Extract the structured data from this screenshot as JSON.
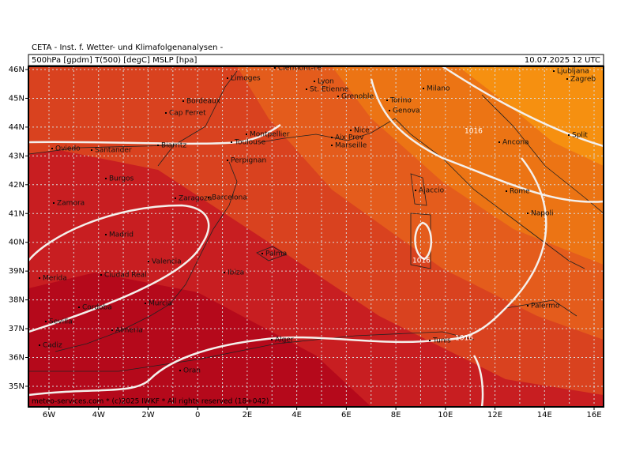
{
  "header": {
    "title": "CETA - Inst. f. Wetter- und Klimafolgenanalysen -",
    "fields": "500hPa [gpdm] T(500) [degC] MSLP [hpa]",
    "datetime": "10.07.2025 12 UTC"
  },
  "longitude_labels": [
    "6W",
    "4W",
    "2W",
    "0",
    "2E",
    "4E",
    "6E",
    "8E",
    "10E",
    "12E",
    "14E",
    "16E"
  ],
  "latitude_labels": [
    "46N",
    "45N",
    "44N",
    "43N",
    "42N",
    "41N",
    "40N",
    "39N",
    "38N",
    "37N",
    "36N",
    "35N"
  ],
  "cities": [
    "Clermont-Fe",
    "Limoges",
    "Lyon",
    "St. Etienne",
    "Grenoble",
    "Milano",
    "Torino",
    "Genova",
    "Bordeaux",
    "Cap Ferret",
    "Montpellier",
    "Nice",
    "Aix Prov",
    "Marseille",
    "Toulouse",
    "Biarritz",
    "Oviedo",
    "Santander",
    "Perpignan",
    "Burgos",
    "Zaragoza",
    "Barcelona",
    "Ajaccio",
    "Rome",
    "Ancona",
    "Split",
    "Zagreb",
    "Ljubljana",
    "Napoli",
    "Zamora",
    "Madrid",
    "Valencia",
    "Palma",
    "Ibiza",
    "Merida",
    "Ciudad Real",
    "Cordoba",
    "Murcia",
    "Palermo",
    "Sevilla",
    "Almeria",
    "Cadiz",
    "Alger",
    "Tunis",
    "Oran"
  ],
  "isobar_labels": [
    "1016",
    "1016",
    "1016"
  ],
  "footer": "meteo-services.com * (c)2025 IWKF * All rights reserved (18+042)"
}
